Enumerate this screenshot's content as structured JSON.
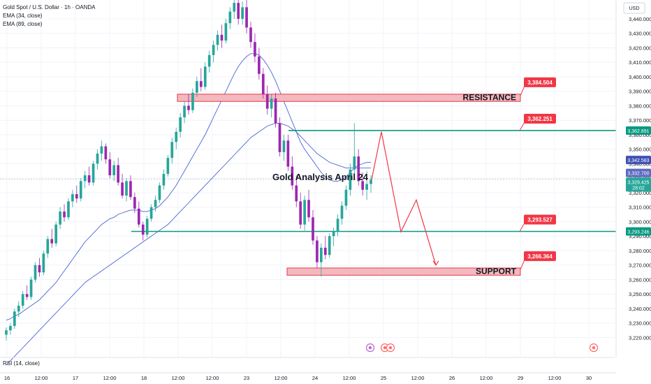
{
  "legend": {
    "symbol": "Gold Spot / U.S. Dollar · 1h · OANDA",
    "ema1": "EMA (34, close)",
    "ema2": "EMA (89, close)"
  },
  "currency": "USD",
  "rsi_label": "RSI (14, close)",
  "colors": {
    "bull": "#26a69a",
    "bear": "#9c27b0",
    "ema": "#4a64d6",
    "resistance_fill": "#f4b8bf",
    "resistance_stroke": "#e53946",
    "level_line": "#089981",
    "projection": "#f23645",
    "callout": "#f23645"
  },
  "chart_data": {
    "type": "candlestick",
    "title": "Gold Analysis April 24",
    "y_ticks": [
      3220,
      3230,
      3240,
      3250,
      3260,
      3270,
      3280,
      3290,
      3300,
      3310,
      3320,
      3330,
      3340,
      3350,
      3360,
      3370,
      3380,
      3390,
      3400,
      3410,
      3420,
      3430,
      3440
    ],
    "y_tick_labels": [
      "3,220.000",
      "3,230.000",
      "3,240.000",
      "3,250.000",
      "3,260.000",
      "3,270.000",
      "3,280.000",
      "3,290.000",
      "3,300.000",
      "3,310.000",
      "3,320.000",
      "3,330.000",
      "3,340.000",
      "3,350.000",
      "3,360.000",
      "3,370.000",
      "3,380.000",
      "3,390.000",
      "3,400.000",
      "3,410.000",
      "3,420.000",
      "3,430.000",
      "3,440.000"
    ],
    "ylim": [
      3213,
      3453
    ],
    "x_labels": [
      "16",
      "12:00",
      "17",
      "12:00",
      "18",
      "12:00",
      "12:00",
      "23",
      "12:00",
      "24",
      "12:00",
      "25",
      "12:00",
      "26",
      "12:00",
      "29",
      "12:00",
      "30"
    ],
    "candles": [
      [
        3222,
        3227,
        3218,
        3225
      ],
      [
        3225,
        3230,
        3222,
        3228
      ],
      [
        3228,
        3240,
        3226,
        3238
      ],
      [
        3238,
        3245,
        3234,
        3242
      ],
      [
        3242,
        3252,
        3240,
        3250
      ],
      [
        3250,
        3256,
        3246,
        3248
      ],
      [
        3248,
        3262,
        3246,
        3260
      ],
      [
        3260,
        3272,
        3258,
        3270
      ],
      [
        3270,
        3275,
        3262,
        3265
      ],
      [
        3265,
        3280,
        3263,
        3278
      ],
      [
        3278,
        3290,
        3275,
        3288
      ],
      [
        3288,
        3295,
        3282,
        3285
      ],
      [
        3285,
        3300,
        3283,
        3298
      ],
      [
        3298,
        3310,
        3295,
        3307
      ],
      [
        3307,
        3312,
        3300,
        3303
      ],
      [
        3303,
        3316,
        3301,
        3314
      ],
      [
        3314,
        3322,
        3310,
        3319
      ],
      [
        3319,
        3325,
        3313,
        3316
      ],
      [
        3316,
        3330,
        3314,
        3328
      ],
      [
        3328,
        3335,
        3323,
        3332
      ],
      [
        3332,
        3338,
        3325,
        3327
      ],
      [
        3327,
        3342,
        3325,
        3340
      ],
      [
        3340,
        3350,
        3336,
        3347
      ],
      [
        3347,
        3356,
        3342,
        3352
      ],
      [
        3352,
        3354,
        3340,
        3343
      ],
      [
        3343,
        3348,
        3330,
        3332
      ],
      [
        3332,
        3342,
        3328,
        3339
      ],
      [
        3339,
        3344,
        3325,
        3327
      ],
      [
        3327,
        3333,
        3316,
        3318
      ],
      [
        3318,
        3330,
        3314,
        3328
      ],
      [
        3328,
        3332,
        3315,
        3317
      ],
      [
        3317,
        3320,
        3306,
        3309
      ],
      [
        3309,
        3314,
        3296,
        3298
      ],
      [
        3298,
        3300,
        3287,
        3291
      ],
      [
        3291,
        3304,
        3289,
        3302
      ],
      [
        3302,
        3312,
        3300,
        3310
      ],
      [
        3310,
        3318,
        3307,
        3315
      ],
      [
        3315,
        3327,
        3313,
        3325
      ],
      [
        3325,
        3336,
        3322,
        3333
      ],
      [
        3333,
        3346,
        3331,
        3344
      ],
      [
        3344,
        3358,
        3340,
        3355
      ],
      [
        3355,
        3365,
        3350,
        3362
      ],
      [
        3362,
        3375,
        3358,
        3372
      ],
      [
        3372,
        3383,
        3368,
        3380
      ],
      [
        3380,
        3388,
        3374,
        3377
      ],
      [
        3377,
        3392,
        3375,
        3389
      ],
      [
        3389,
        3400,
        3386,
        3397
      ],
      [
        3397,
        3406,
        3390,
        3393
      ],
      [
        3393,
        3410,
        3391,
        3407
      ],
      [
        3407,
        3418,
        3403,
        3415
      ],
      [
        3415,
        3425,
        3410,
        3422
      ],
      [
        3422,
        3432,
        3418,
        3429
      ],
      [
        3429,
        3436,
        3420,
        3425
      ],
      [
        3425,
        3440,
        3423,
        3437
      ],
      [
        3437,
        3448,
        3433,
        3445
      ],
      [
        3445,
        3453,
        3440,
        3451
      ],
      [
        3451,
        3453,
        3436,
        3440
      ],
      [
        3440,
        3452,
        3436,
        3448
      ],
      [
        3448,
        3453,
        3430,
        3434
      ],
      [
        3434,
        3438,
        3420,
        3424
      ],
      [
        3424,
        3430,
        3410,
        3414
      ],
      [
        3414,
        3420,
        3398,
        3402
      ],
      [
        3402,
        3406,
        3385,
        3388
      ],
      [
        3388,
        3394,
        3374,
        3378
      ],
      [
        3378,
        3388,
        3372,
        3385
      ],
      [
        3385,
        3389,
        3365,
        3368
      ],
      [
        3368,
        3372,
        3345,
        3348
      ],
      [
        3348,
        3360,
        3342,
        3356
      ],
      [
        3356,
        3360,
        3335,
        3338
      ],
      [
        3338,
        3345,
        3322,
        3325
      ],
      [
        3325,
        3332,
        3310,
        3314
      ],
      [
        3314,
        3320,
        3295,
        3298
      ],
      [
        3298,
        3318,
        3294,
        3315
      ],
      [
        3315,
        3322,
        3300,
        3303
      ],
      [
        3303,
        3308,
        3284,
        3287
      ],
      [
        3287,
        3290,
        3268,
        3272
      ],
      [
        3272,
        3285,
        3262,
        3282
      ],
      [
        3282,
        3290,
        3274,
        3277
      ],
      [
        3277,
        3292,
        3275,
        3290
      ],
      [
        3290,
        3296,
        3283,
        3293
      ],
      [
        3293,
        3305,
        3290,
        3302
      ],
      [
        3302,
        3314,
        3298,
        3311
      ],
      [
        3311,
        3325,
        3308,
        3322
      ],
      [
        3322,
        3340,
        3318,
        3336
      ],
      [
        3336,
        3368,
        3330,
        3345
      ],
      [
        3345,
        3350,
        3325,
        3328
      ],
      [
        3328,
        3334,
        3318,
        3322
      ],
      [
        3322,
        3335,
        3315,
        3326
      ],
      [
        3326,
        3332,
        3320,
        3329
      ]
    ],
    "ema_fast": [
      3232,
      3233,
      3235,
      3236,
      3238,
      3240,
      3242,
      3244,
      3246,
      3249,
      3252,
      3255,
      3258,
      3262,
      3266,
      3270,
      3274,
      3278,
      3282,
      3286,
      3289,
      3292,
      3295,
      3298,
      3300,
      3302,
      3303,
      3305,
      3306,
      3307,
      3308,
      3308,
      3308,
      3307,
      3307,
      3308,
      3309,
      3311,
      3314,
      3317,
      3321,
      3325,
      3330,
      3335,
      3340,
      3345,
      3350,
      3355,
      3360,
      3366,
      3372,
      3378,
      3384,
      3390,
      3396,
      3402,
      3407,
      3411,
      3414,
      3416,
      3416,
      3415,
      3412,
      3408,
      3403,
      3397,
      3390,
      3383,
      3376,
      3369,
      3362,
      3355,
      3350,
      3346,
      3342,
      3338,
      3334,
      3331,
      3329,
      3328,
      3328,
      3329,
      3331,
      3334,
      3337,
      3339,
      3340,
      3341,
      3341
    ],
    "ema_slow": [
      3201,
      3204,
      3207,
      3210,
      3213,
      3216,
      3219,
      3222,
      3225,
      3228,
      3231,
      3234,
      3237,
      3240,
      3243,
      3246,
      3249,
      3252,
      3255,
      3258,
      3260,
      3262,
      3264,
      3266,
      3268,
      3270,
      3272,
      3274,
      3276,
      3278,
      3280,
      3282,
      3284,
      3286,
      3288,
      3290,
      3292,
      3294,
      3296,
      3298,
      3301,
      3304,
      3307,
      3310,
      3313,
      3316,
      3319,
      3322,
      3325,
      3328,
      3331,
      3334,
      3337,
      3340,
      3343,
      3346,
      3349,
      3352,
      3355,
      3358,
      3360,
      3362,
      3364,
      3366,
      3367,
      3368,
      3368,
      3367,
      3366,
      3364,
      3362,
      3359,
      3356,
      3353,
      3350,
      3347,
      3345,
      3343,
      3341,
      3340,
      3339,
      3338,
      3337,
      3337,
      3337,
      3337,
      3337,
      3337,
      3337
    ],
    "zones": [
      {
        "name": "RESISTANCE",
        "top": 3388,
        "bottom": 3383,
        "callout": "3,384.504"
      },
      {
        "name": "SUPPORT",
        "top": 3268,
        "bottom": 3263,
        "callout": "3,266.364"
      }
    ],
    "levels": [
      {
        "value": 3362.891,
        "callout": "3,362.251",
        "tag": "3,362.891"
      },
      {
        "value": 3293.246,
        "callout": "3,293.527",
        "tag": "3,293.246"
      }
    ],
    "price_tags": [
      {
        "value": 3342.583,
        "label": "3,342.583",
        "color": "#3f51b5"
      },
      {
        "value": 3332.7,
        "label": "3,332.700",
        "color": "#5c6bc0"
      },
      {
        "value": 3329.425,
        "label": "3,329.425",
        "sub": "28:02",
        "color": "#26a69a"
      }
    ],
    "projection": [
      [
        3329,
        0
      ],
      [
        3362,
        1
      ],
      [
        3293,
        2
      ],
      [
        3315,
        3
      ],
      [
        3270,
        4
      ]
    ]
  }
}
